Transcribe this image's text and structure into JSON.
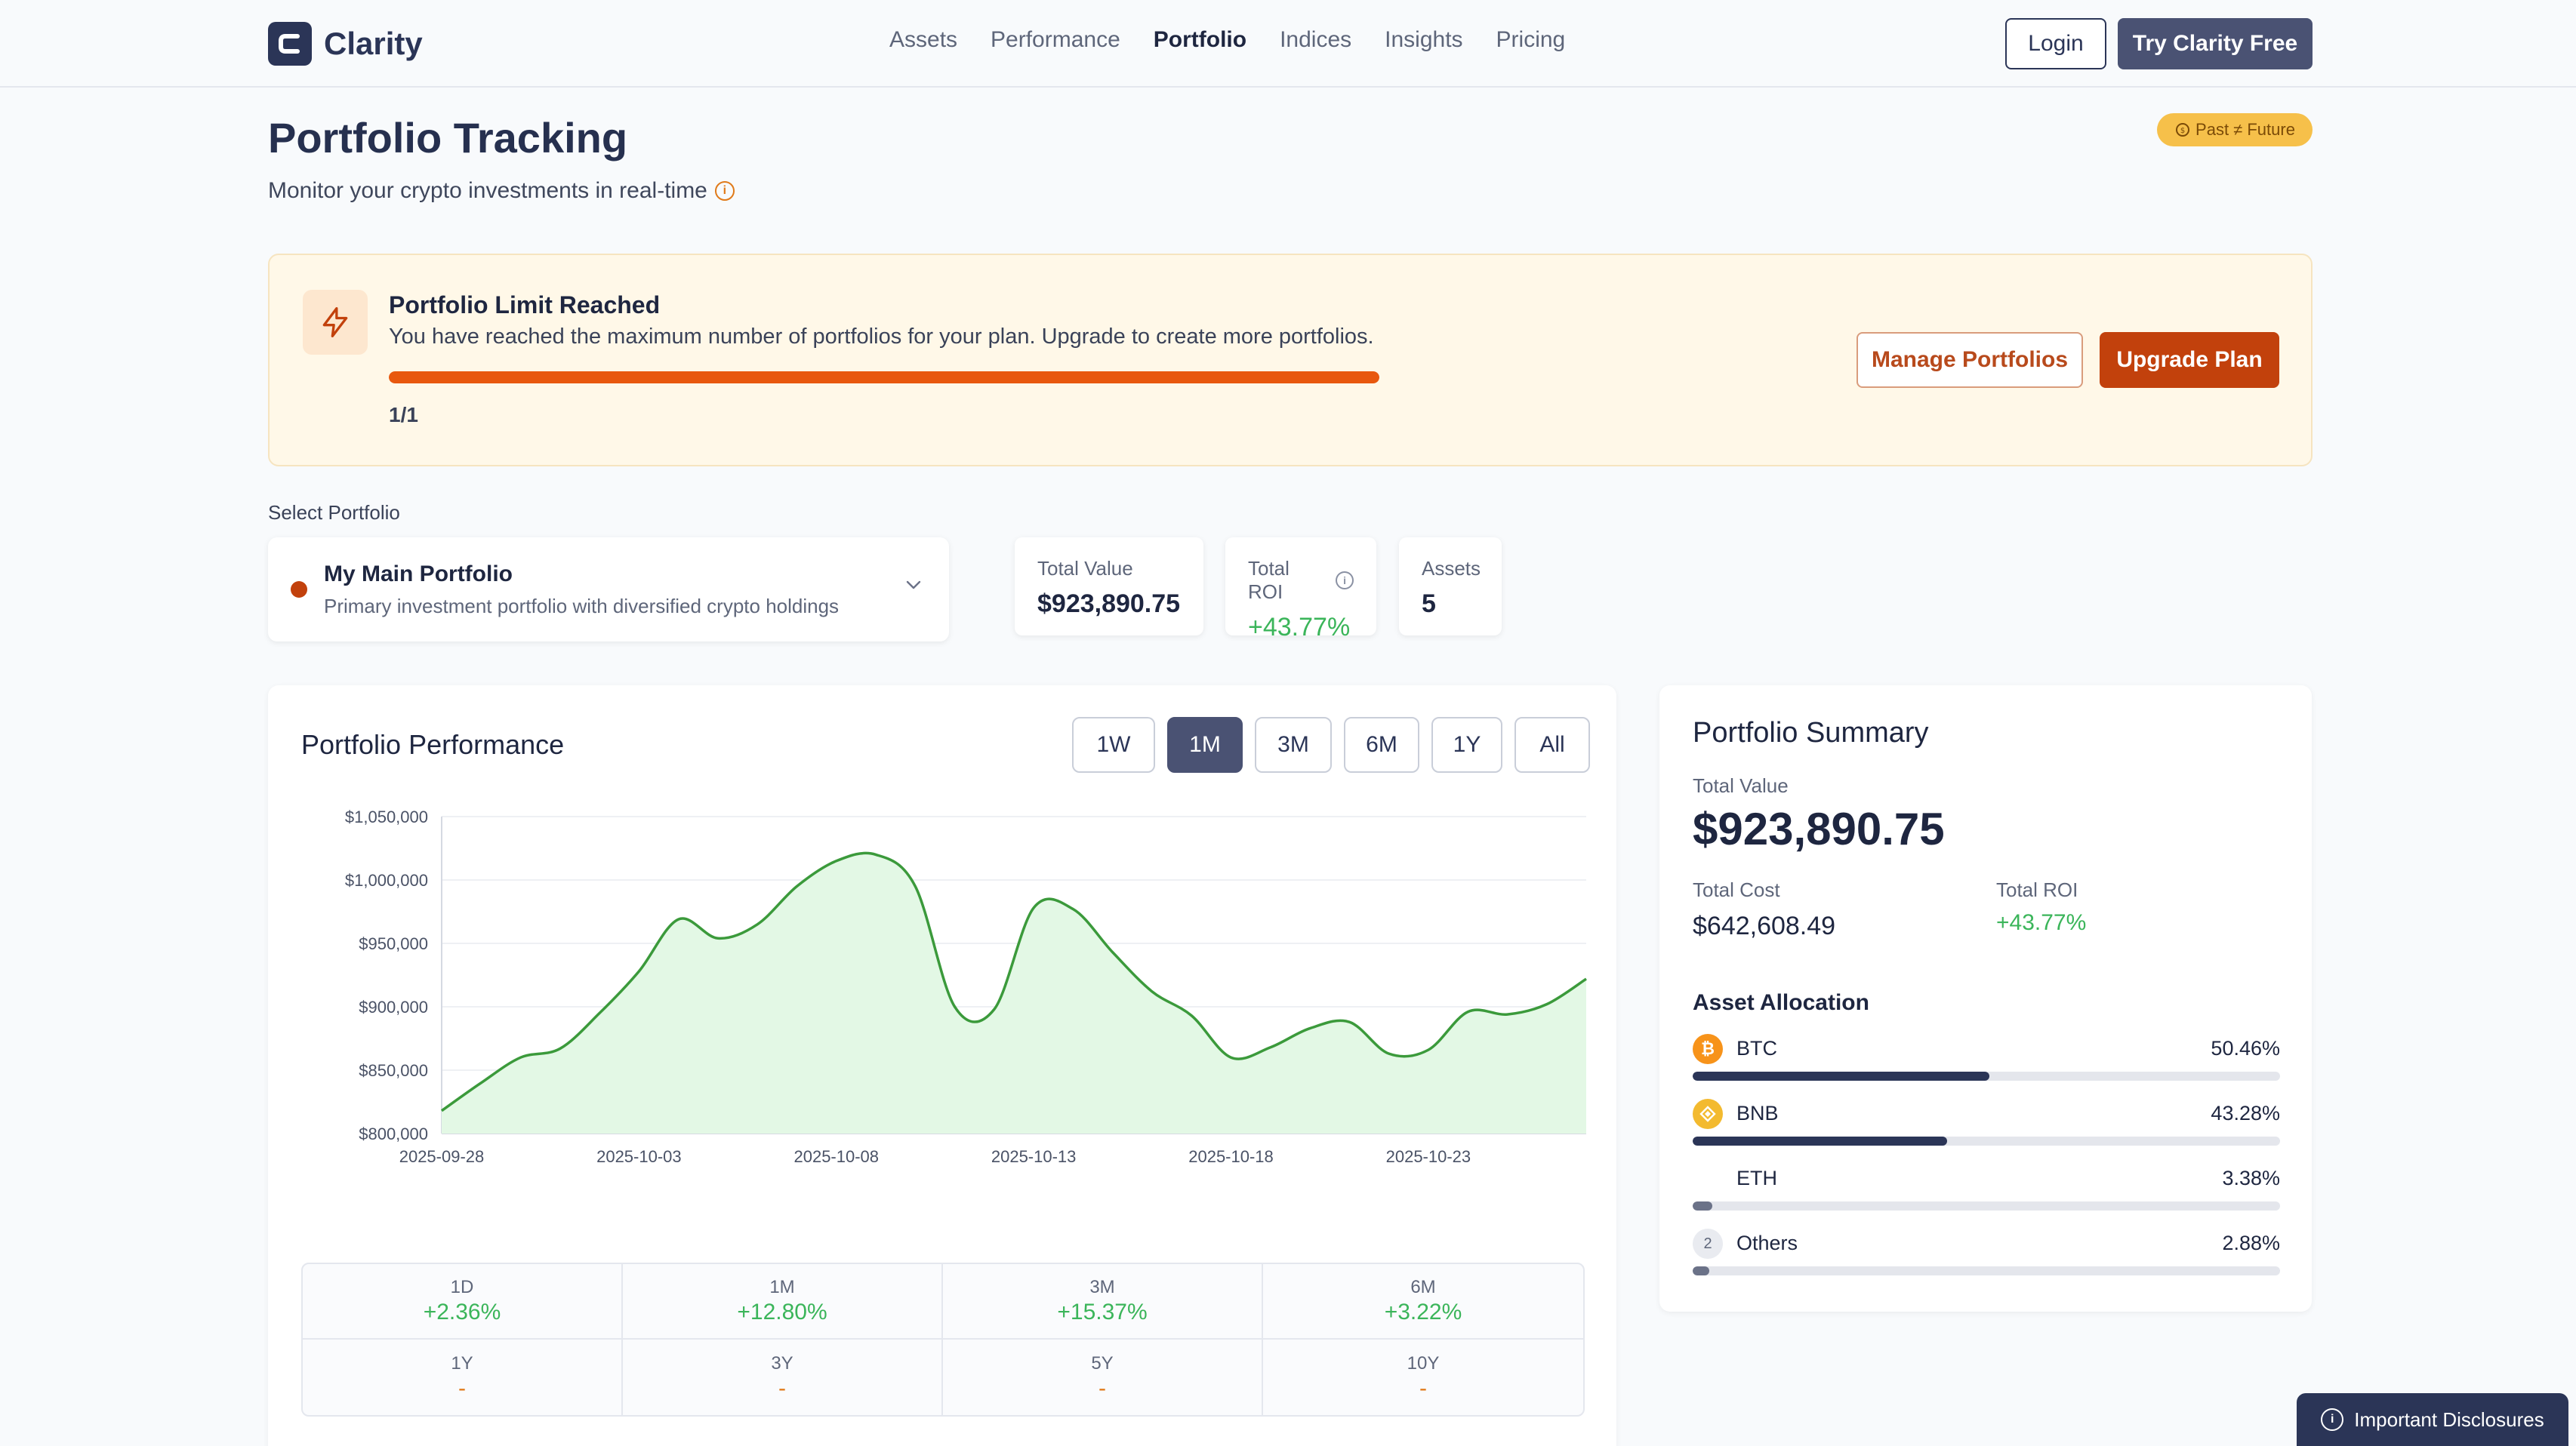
{
  "nav": {
    "brand": "Clarity",
    "links": [
      "Assets",
      "Performance",
      "Portfolio",
      "Indices",
      "Insights",
      "Pricing"
    ],
    "active_link": "Portfolio",
    "login": "Login",
    "try_free": "Try Clarity Free"
  },
  "header": {
    "title": "Portfolio Tracking",
    "subtitle": "Monitor your crypto investments in real-time",
    "badge": "Past ≠ Future"
  },
  "limit": {
    "title": "Portfolio Limit Reached",
    "description": "You have reached the maximum number of portfolios for your plan. Upgrade to create more portfolios.",
    "count": "1/1",
    "progress_fraction": 1.0,
    "manage_label": "Manage Portfolios",
    "upgrade_label": "Upgrade Plan"
  },
  "selector": {
    "label": "Select Portfolio",
    "name": "My Main Portfolio",
    "description": "Primary investment portfolio with diversified crypto holdings"
  },
  "stats": {
    "total_value_label": "Total Value",
    "total_value": "$923,890.75",
    "total_roi_label": "Total ROI",
    "total_roi": "+43.77%",
    "assets_label": "Assets",
    "assets": "5"
  },
  "performance": {
    "title": "Portfolio Performance",
    "ranges": [
      "1W",
      "1M",
      "3M",
      "6M",
      "1Y",
      "All"
    ],
    "active_range": "1M",
    "returns": [
      {
        "label": "1D",
        "value": "+2.36%"
      },
      {
        "label": "1M",
        "value": "+12.80%"
      },
      {
        "label": "3M",
        "value": "+15.37%"
      },
      {
        "label": "6M",
        "value": "+3.22%"
      },
      {
        "label": "1Y",
        "value": "-"
      },
      {
        "label": "3Y",
        "value": "-"
      },
      {
        "label": "5Y",
        "value": "-"
      },
      {
        "label": "10Y",
        "value": "-"
      }
    ]
  },
  "chart_data": {
    "type": "area",
    "title": "",
    "xlabel": "",
    "ylabel": "",
    "ylim": [
      800000,
      1050000
    ],
    "yticks": [
      800000,
      850000,
      900000,
      950000,
      1000000,
      1050000
    ],
    "ytick_labels": [
      "$800,000",
      "$850,000",
      "$900,000",
      "$950,000",
      "$1,000,000",
      "$1,050,000"
    ],
    "xlim": [
      0,
      29
    ],
    "xticks": [
      0,
      5,
      10,
      15,
      20,
      25
    ],
    "xtick_labels": [
      "2025-09-28",
      "2025-10-03",
      "2025-10-08",
      "2025-10-13",
      "2025-10-18",
      "2025-10-23"
    ],
    "x": [
      0,
      1,
      2,
      3,
      4,
      5,
      6,
      7,
      8,
      9,
      10,
      11,
      12,
      13,
      14,
      15,
      16,
      17,
      18,
      19,
      20,
      21,
      22,
      23,
      24,
      25,
      26,
      27,
      28,
      29
    ],
    "values": [
      818000,
      840000,
      860000,
      867000,
      895000,
      928000,
      969000,
      954000,
      965000,
      995000,
      1015000,
      1020000,
      995000,
      900000,
      898000,
      978000,
      977000,
      943000,
      912000,
      893000,
      860000,
      868000,
      883000,
      888000,
      863000,
      866000,
      896000,
      894000,
      902000,
      922000
    ],
    "grid": true,
    "line_color": "#3b9a3b",
    "fill_color": "#e3f8e5"
  },
  "summary": {
    "title": "Portfolio Summary",
    "total_value_label": "Total Value",
    "total_value": "$923,890.75",
    "total_cost_label": "Total Cost",
    "total_cost": "$642,608.49",
    "total_roi_label": "Total ROI",
    "total_roi": "+43.77%",
    "allocation_title": "Asset Allocation",
    "allocation": [
      {
        "name": "BTC",
        "pct": "50.46%",
        "value": 50.46,
        "icon": "bitcoin-icon"
      },
      {
        "name": "BNB",
        "pct": "43.28%",
        "value": 43.28,
        "icon": "bnb-icon"
      },
      {
        "name": "ETH",
        "pct": "3.38%",
        "value": 3.38,
        "icon": "ethereum-icon"
      },
      {
        "name": "Others",
        "pct": "2.88%",
        "value": 2.88,
        "icon": "others-count-icon",
        "badge": "2"
      }
    ]
  },
  "disclosures": "Important Disclosures"
}
